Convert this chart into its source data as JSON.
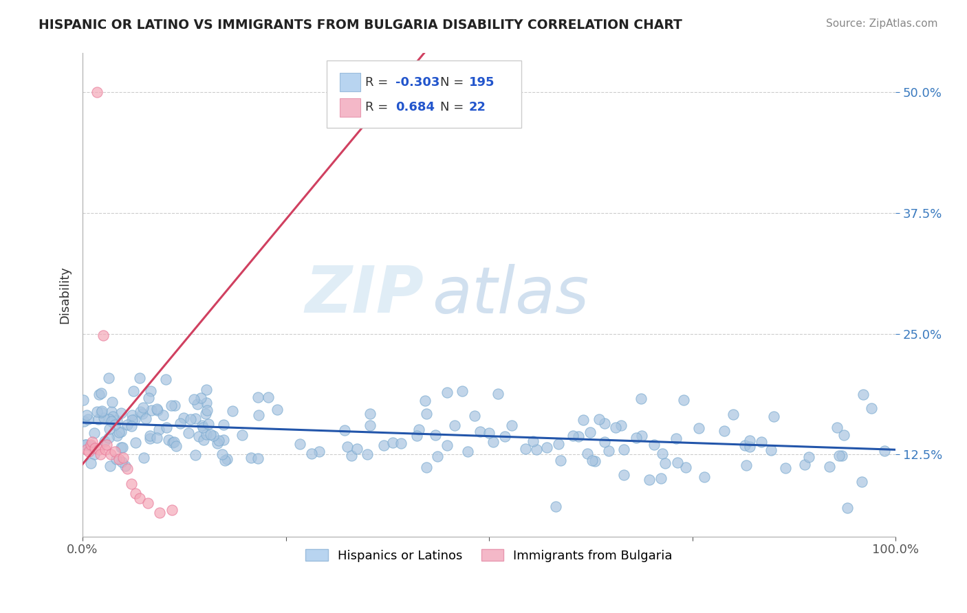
{
  "title": "HISPANIC OR LATINO VS IMMIGRANTS FROM BULGARIA DISABILITY CORRELATION CHART",
  "source": "Source: ZipAtlas.com",
  "ylabel": "Disability",
  "x_min": 0.0,
  "x_max": 1.0,
  "y_min": 0.04,
  "y_max": 0.54,
  "y_ticks": [
    0.125,
    0.25,
    0.375,
    0.5
  ],
  "y_tick_labels": [
    "12.5%",
    "25.0%",
    "37.5%",
    "50.0%"
  ],
  "x_tick_positions": [
    0.0,
    0.25,
    0.5,
    0.75,
    1.0
  ],
  "x_tick_labels": [
    "0.0%",
    "",
    "",
    "",
    "100.0%"
  ],
  "blue_R": -0.303,
  "blue_N": 195,
  "pink_R": 0.684,
  "pink_N": 22,
  "blue_color": "#a8c4e0",
  "blue_edge_color": "#7aaad0",
  "pink_color": "#f4a8b8",
  "pink_edge_color": "#e87898",
  "blue_line_color": "#2255aa",
  "pink_line_color": "#d04060",
  "legend_label_blue": "Hispanics or Latinos",
  "legend_label_pink": "Immigrants from Bulgaria",
  "watermark_zip": "ZIP",
  "watermark_atlas": "atlas",
  "background_color": "#ffffff",
  "grid_color": "#cccccc",
  "blue_trend_x0": 0.0,
  "blue_trend_y0": 0.158,
  "blue_trend_x1": 1.0,
  "blue_trend_y1": 0.13,
  "pink_trend_x0": 0.0,
  "pink_trend_y0": 0.115,
  "pink_trend_x1": 0.42,
  "pink_trend_y1": 0.54
}
